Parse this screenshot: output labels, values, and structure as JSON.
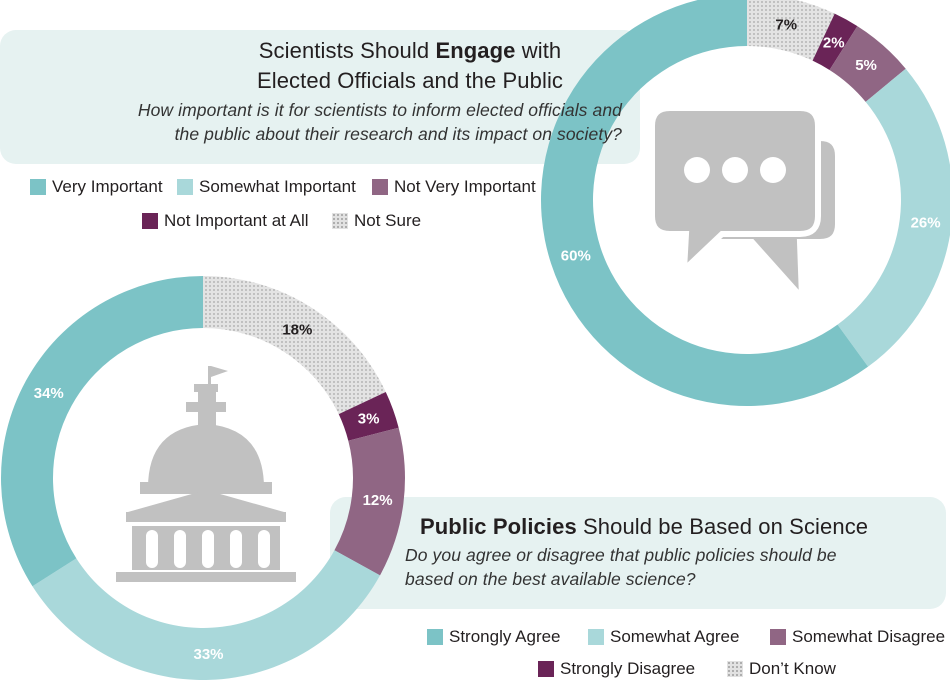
{
  "colors": {
    "very_important": "#7cc3c6",
    "somewhat_important": "#a9d8da",
    "not_very_important": "#906684",
    "not_important_at_all": "#6a2457",
    "not_sure": "#e0e0e0",
    "icon_gray": "#c1c1c1",
    "panel_bg": "#e6f2f1"
  },
  "top": {
    "title_pre": "Scientists Should ",
    "title_bold": "Engage",
    "title_post": " with",
    "title_line2": "Elected Officials and the Public",
    "question_line1": "How important is it for scientists to inform elected officials and",
    "question_line2": "the public about their research and its impact on society?",
    "legend": [
      {
        "label": "Very Important",
        "color": "#7cc3c6"
      },
      {
        "label": "Somewhat Important",
        "color": "#a9d8da"
      },
      {
        "label": "Not Very Important",
        "color": "#906684"
      },
      {
        "label": "Not Important at All",
        "color": "#6a2457"
      },
      {
        "label": "Not Sure",
        "color": "dotted"
      }
    ],
    "icon": "speech-bubbles-icon"
  },
  "bottom": {
    "title_bold": "Public Policies",
    "title_post": " Should be Based on Science",
    "question_line1": "Do you agree or disagree that public policies should be",
    "question_line2": "based on the best available science?",
    "legend": [
      {
        "label": "Strongly Agree",
        "color": "#7cc3c6"
      },
      {
        "label": "Somewhat Agree",
        "color": "#a9d8da"
      },
      {
        "label": "Somewhat Disagree",
        "color": "#906684"
      },
      {
        "label": "Strongly Disagree",
        "color": "#6a2457"
      },
      {
        "label": "Don’t Know",
        "color": "dotted"
      }
    ],
    "icon": "capitol-building-icon"
  },
  "chart_data": [
    {
      "type": "pie",
      "variant": "donut",
      "title": "Scientists Should Engage with Elected Officials and the Public",
      "start": "top",
      "direction": "clockwise",
      "slices": [
        {
          "label": "Not Sure",
          "value": 7,
          "text": "7%",
          "color": "dotted",
          "text_color": "#231f20"
        },
        {
          "label": "Not Important at All",
          "value": 2,
          "text": "2%",
          "color": "#6a2457",
          "text_color": "#ffffff"
        },
        {
          "label": "Not Very Important",
          "value": 5,
          "text": "5%",
          "color": "#906684",
          "text_color": "#ffffff"
        },
        {
          "label": "Somewhat Important",
          "value": 26,
          "text": "26%",
          "color": "#a9d8da",
          "text_color": "#ffffff"
        },
        {
          "label": "Very Important",
          "value": 60,
          "text": "60%",
          "color": "#7cc3c6",
          "text_color": "#ffffff"
        }
      ]
    },
    {
      "type": "pie",
      "variant": "donut",
      "title": "Public Policies Should be Based on Science",
      "start": "top",
      "direction": "clockwise",
      "slices": [
        {
          "label": "Don’t Know",
          "value": 18,
          "text": "18%",
          "color": "dotted",
          "text_color": "#231f20"
        },
        {
          "label": "Strongly Disagree",
          "value": 3,
          "text": "3%",
          "color": "#6a2457",
          "text_color": "#ffffff"
        },
        {
          "label": "Somewhat Disagree",
          "value": 12,
          "text": "12%",
          "color": "#906684",
          "text_color": "#ffffff"
        },
        {
          "label": "Somewhat Agree",
          "value": 33,
          "text": "33%",
          "color": "#a9d8da",
          "text_color": "#ffffff"
        },
        {
          "label": "Strongly Agree",
          "value": 34,
          "text": "34%",
          "color": "#7cc3c6",
          "text_color": "#ffffff"
        }
      ]
    }
  ]
}
